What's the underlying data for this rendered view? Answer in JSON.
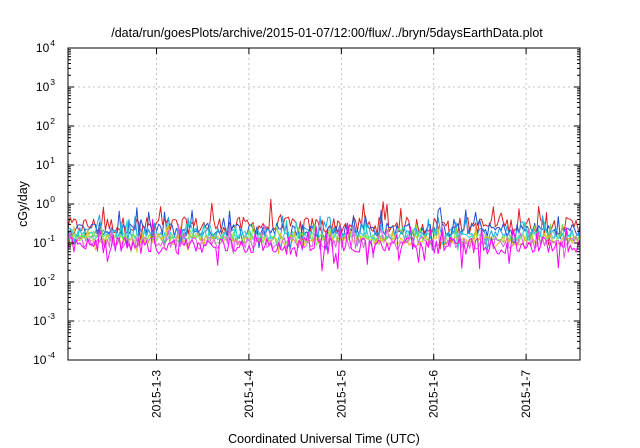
{
  "chart_data": {
    "type": "line",
    "title": "/data/run/goesPlots/archive/2015-01-07/12:00/flux/../bryn/5daysEarthData.plot",
    "xlabel": "Coordinated Universal Time (UTC)",
    "ylabel": "cGy/day",
    "y_scale": "log",
    "ylim": [
      0.0001,
      10000
    ],
    "xlim": [
      "2015-01-02T01:00",
      "2015-01-07T14:00"
    ],
    "x_ticks": [
      "2015-1-3",
      "2015-1-4",
      "2015-1-5",
      "2015-1-6",
      "2015-1-7"
    ],
    "y_ticks": [
      {
        "base": "10",
        "exp": "4"
      },
      {
        "base": "10",
        "exp": "3"
      },
      {
        "base": "10",
        "exp": "2"
      },
      {
        "base": "10",
        "exp": "1"
      },
      {
        "base": "10",
        "exp": "0"
      },
      {
        "base": "10",
        "exp": "-1"
      },
      {
        "base": "10",
        "exp": "-2"
      },
      {
        "base": "10",
        "exp": "-3"
      },
      {
        "base": "10",
        "exp": "-4"
      }
    ],
    "grid": true,
    "series": [
      {
        "color": "#dd1f1f",
        "level": 0.28,
        "noise": 0.22
      },
      {
        "color": "#1f4fd0",
        "level": 0.22,
        "noise": 0.18
      },
      {
        "color": "#1fa0e8",
        "level": 0.18,
        "noise": 0.15
      },
      {
        "color": "#22d6c8",
        "level": 0.15,
        "noise": 0.13
      },
      {
        "color": "#7fe14a",
        "level": 0.13,
        "noise": 0.12
      },
      {
        "color": "#e0c020",
        "level": 0.115,
        "noise": 0.12
      },
      {
        "color": "#e060e0",
        "level": 0.1,
        "noise": 0.16
      },
      {
        "color": "#ff00ff",
        "level": 0.085,
        "noise": 0.22
      }
    ]
  }
}
